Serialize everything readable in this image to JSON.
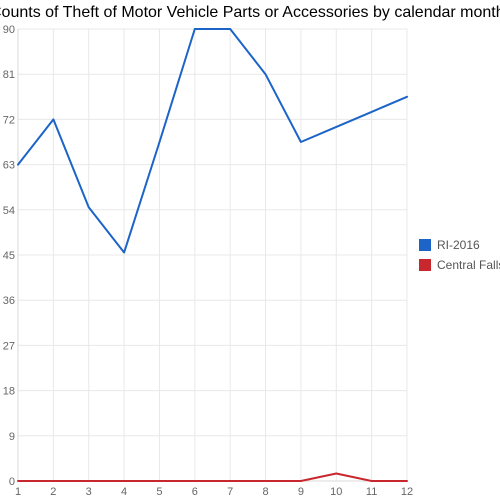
{
  "chart_data": {
    "type": "line",
    "title": "Counts of Theft of Motor Vehicle Parts or Accessories by calendar month",
    "x": [
      1,
      2,
      3,
      4,
      5,
      6,
      7,
      8,
      9,
      10,
      11,
      12
    ],
    "x_tick_labels": [
      "1",
      "2",
      "3",
      "4",
      "5",
      "6",
      "7",
      "8",
      "9",
      "10",
      "11",
      "12"
    ],
    "y_tick_labels": [
      "0",
      "9",
      "18",
      "27",
      "36",
      "45",
      "54",
      "63",
      "72",
      "81",
      "90"
    ],
    "ylim": [
      0,
      90
    ],
    "xlim": [
      1,
      12
    ],
    "grid": true,
    "legend_position": "right",
    "series": [
      {
        "name": "RI-2016",
        "color": "#1c64c8",
        "values": [
          63,
          72,
          54.5,
          45.5,
          67.5,
          90,
          90,
          81,
          67.5,
          70.5,
          73.5,
          76.5
        ]
      },
      {
        "name": "Central Falls",
        "color": "#c8282d",
        "values": [
          0,
          0,
          0,
          0,
          0,
          0,
          0,
          0,
          0,
          1.5,
          0,
          0
        ]
      }
    ]
  }
}
